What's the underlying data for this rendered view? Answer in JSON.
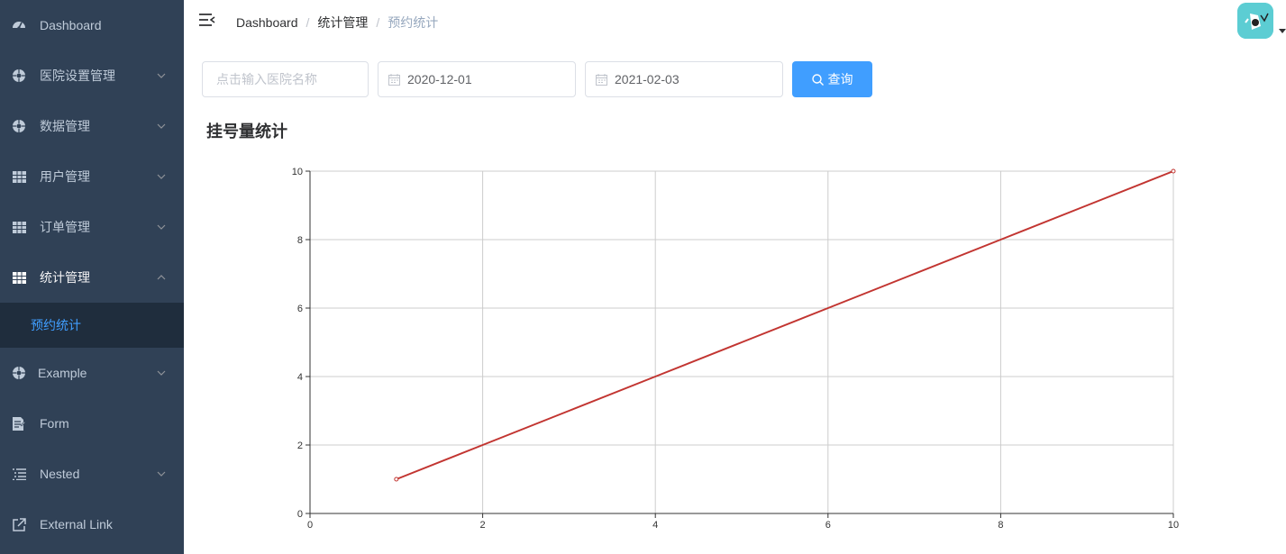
{
  "sidebar": {
    "items": [
      {
        "label": "Dashboard",
        "icon": "dashboard-icon"
      },
      {
        "label": "医院设置管理",
        "icon": "settings-circle-icon"
      },
      {
        "label": "数据管理",
        "icon": "settings-circle-icon"
      },
      {
        "label": "用户管理",
        "icon": "table-icon"
      },
      {
        "label": "订单管理",
        "icon": "table-icon"
      },
      {
        "label": "统计管理",
        "icon": "table-icon"
      },
      {
        "label": "Example",
        "icon": "settings-circle-icon"
      },
      {
        "label": "Form",
        "icon": "form-icon"
      },
      {
        "label": "Nested",
        "icon": "list-icon"
      },
      {
        "label": "External Link",
        "icon": "external-link-icon"
      }
    ],
    "active_submenu": {
      "label": "预约统计"
    }
  },
  "navbar": {
    "breadcrumb": [
      "Dashboard",
      "统计管理",
      "预约统计"
    ],
    "separator": "/"
  },
  "filter": {
    "hospital_placeholder": "点击输入医院名称",
    "start_date": "2020-12-01",
    "end_date": "2021-02-03",
    "query_label": "查询"
  },
  "page": {
    "chart_heading": "挂号量统计"
  },
  "colors": {
    "sidebar_bg": "#304156",
    "sidebar_active_bg": "#1f2d3d",
    "accent": "#409eff",
    "line": "#c23531"
  },
  "chart_data": {
    "type": "line",
    "x": [
      1,
      2,
      3,
      4,
      5,
      6,
      7,
      8,
      9,
      10
    ],
    "series": [
      {
        "values": [
          1,
          2,
          3,
          4,
          5,
          6,
          7,
          8,
          9,
          10
        ]
      }
    ],
    "xlim": [
      0,
      10
    ],
    "ylim": [
      0,
      10
    ],
    "x_ticks": [
      "0",
      "2",
      "4",
      "6",
      "8",
      "10"
    ],
    "y_ticks": [
      "0",
      "2",
      "4",
      "6",
      "8",
      "10"
    ],
    "grid": true
  }
}
